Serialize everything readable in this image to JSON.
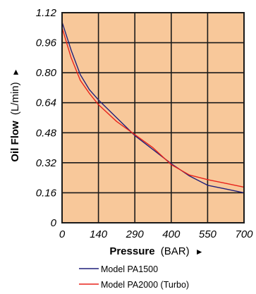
{
  "chart_data": {
    "type": "line",
    "title": "",
    "xlabel": "Pressure",
    "xlabel_unit": "(BAR)",
    "xlabel_arrow": "►",
    "ylabel": "Oil Flow",
    "ylabel_unit": "(L/min)",
    "ylabel_arrow": "►",
    "x_ticks": [
      {
        "value": 0,
        "label": "0"
      },
      {
        "value": 140,
        "label": "140"
      },
      {
        "value": 290,
        "label": "290"
      },
      {
        "value": 400,
        "label": "400"
      },
      {
        "value": 550,
        "label": "550"
      },
      {
        "value": 700,
        "label": "700"
      }
    ],
    "y_ticks": [
      {
        "value": 0,
        "label": "0"
      },
      {
        "value": 0.16,
        "label": "0.16"
      },
      {
        "value": 0.32,
        "label": "0.32"
      },
      {
        "value": 0.48,
        "label": "0.48"
      },
      {
        "value": 0.64,
        "label": "0.64"
      },
      {
        "value": 0.8,
        "label": "0.80"
      },
      {
        "value": 0.96,
        "label": "0.96"
      },
      {
        "value": 1.12,
        "label": "1.12"
      }
    ],
    "ylim": [
      0,
      1.12
    ],
    "grid": true,
    "plot_background": "#f8c89a",
    "grid_color": "#1a1a1a",
    "legend_position": "bottom",
    "series": [
      {
        "name": "Model PA1500",
        "color": "#1f1f7a",
        "points": [
          [
            0,
            1.07
          ],
          [
            35,
            0.92
          ],
          [
            70,
            0.79
          ],
          [
            105,
            0.71
          ],
          [
            140,
            0.655
          ],
          [
            215,
            0.56
          ],
          [
            290,
            0.465
          ],
          [
            345,
            0.39
          ],
          [
            400,
            0.315
          ],
          [
            475,
            0.25
          ],
          [
            550,
            0.2
          ],
          [
            625,
            0.18
          ],
          [
            700,
            0.16
          ]
        ]
      },
      {
        "name": "Model PA2000 (Turbo)",
        "color": "#e8231b",
        "points": [
          [
            0,
            1.04
          ],
          [
            35,
            0.88
          ],
          [
            70,
            0.76
          ],
          [
            105,
            0.69
          ],
          [
            140,
            0.63
          ],
          [
            215,
            0.54
          ],
          [
            290,
            0.47
          ],
          [
            345,
            0.4
          ],
          [
            400,
            0.31
          ],
          [
            475,
            0.255
          ],
          [
            550,
            0.23
          ],
          [
            625,
            0.21
          ],
          [
            700,
            0.19
          ]
        ]
      }
    ]
  }
}
